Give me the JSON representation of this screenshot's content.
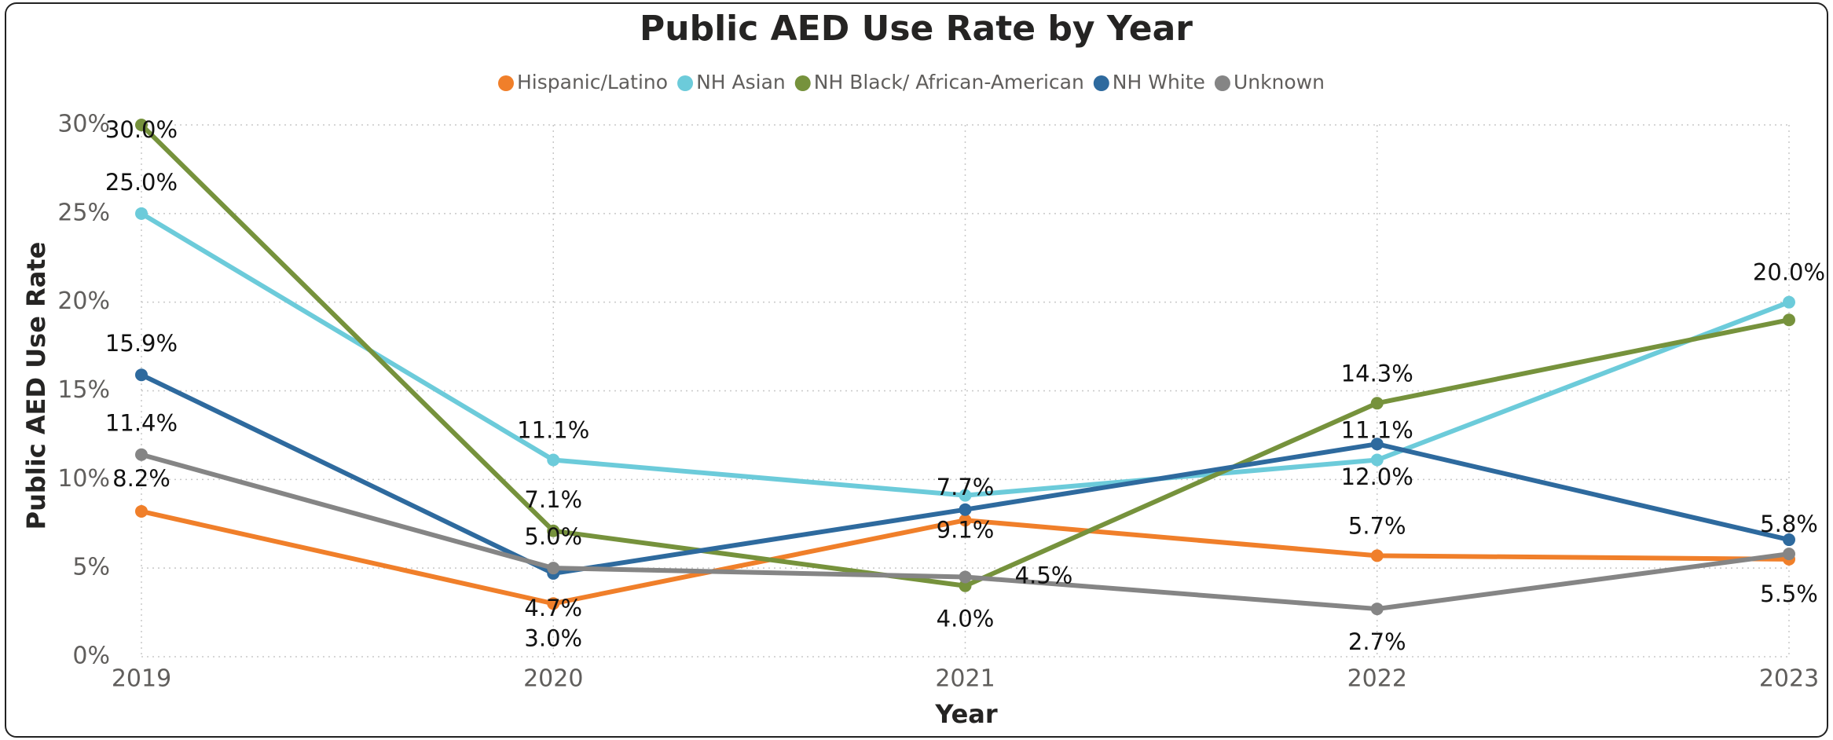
{
  "chart_data": {
    "type": "line",
    "title": "Public AED Use Rate by Year",
    "x_label": "Year",
    "y_label": "Public AED Use Rate",
    "categories": [
      "2019",
      "2020",
      "2021",
      "2022",
      "2023"
    ],
    "series": [
      {
        "name": "Hispanic/Latino",
        "color": "#F07F2A",
        "values": [
          8.2,
          3.0,
          7.7,
          5.7,
          5.5
        ],
        "value_labels": [
          "8.2%",
          "3.0%",
          "7.7%",
          "5.7%",
          "5.5%"
        ]
      },
      {
        "name": "NH Asian",
        "color": "#6CCBDA",
        "values": [
          25.0,
          11.1,
          9.1,
          11.1,
          20.0
        ],
        "value_labels": [
          "25.0%",
          "11.1%",
          "9.1%",
          "11.1%",
          "20.0%"
        ]
      },
      {
        "name": "NH Black/ African-American",
        "color": "#76923C",
        "values": [
          30.0,
          7.1,
          4.0,
          14.3,
          19.0
        ],
        "value_labels": [
          "30.0%",
          "7.1%",
          "4.0%",
          "14.3%",
          null
        ]
      },
      {
        "name": "NH White",
        "color": "#2E6A9E",
        "values": [
          15.9,
          4.7,
          8.3,
          12.0,
          6.6
        ],
        "value_labels": [
          "15.9%",
          "4.7%",
          null,
          "12.0%",
          null
        ]
      },
      {
        "name": "Unknown",
        "color": "#858585",
        "values": [
          11.4,
          5.0,
          4.5,
          2.7,
          5.8
        ],
        "value_labels": [
          "11.4%",
          "5.0%",
          "4.5%",
          "2.7%",
          "5.8%"
        ]
      }
    ],
    "ylim": [
      0,
      30
    ],
    "yticks": [
      {
        "value": 0,
        "label": "0%"
      },
      {
        "value": 5,
        "label": "5%"
      },
      {
        "value": 10,
        "label": "10%"
      },
      {
        "value": 15,
        "label": "15%"
      },
      {
        "value": 20,
        "label": "20%"
      },
      {
        "value": 25,
        "label": "25%"
      },
      {
        "value": 30,
        "label": "30%"
      }
    ],
    "grid": true,
    "legend": "top"
  }
}
